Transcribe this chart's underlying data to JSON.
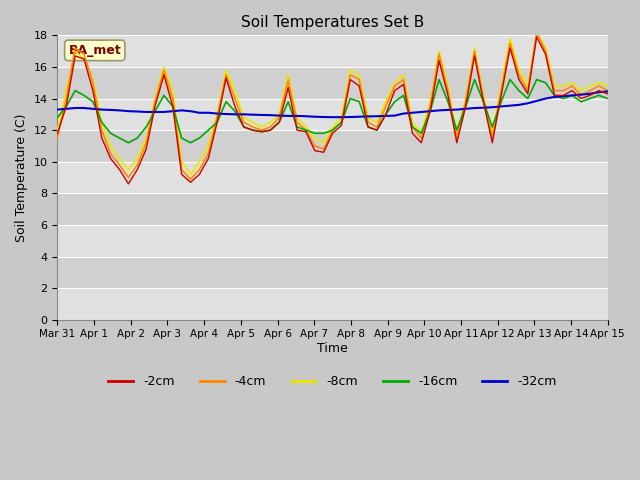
{
  "title": "Soil Temperatures Set B",
  "xlabel": "Time",
  "ylabel": "Soil Temperature (C)",
  "annotation": "BA_met",
  "ylim": [
    0,
    18
  ],
  "yticks": [
    0,
    2,
    4,
    6,
    8,
    10,
    12,
    14,
    16,
    18
  ],
  "xtick_labels": [
    "Mar 31",
    "Apr 1",
    "Apr 2",
    "Apr 3",
    "Apr 4",
    "Apr 5",
    "Apr 6",
    "Apr 7",
    "Apr 8",
    "Apr 9",
    "Apr 10",
    "Apr 11",
    "Apr 12",
    "Apr 13",
    "Apr 14",
    "Apr 15"
  ],
  "colors": {
    "-2cm": "#cc0000",
    "-4cm": "#ff8800",
    "-8cm": "#e8e800",
    "-16cm": "#00aa00",
    "-32cm": "#0000cc"
  },
  "legend_labels": [
    "-2cm",
    "-4cm",
    "-8cm",
    "-16cm",
    "-32cm"
  ],
  "band_colors": [
    "#e0e0e0",
    "#d0d0d0"
  ],
  "fig_facecolor": "#c8c8c8",
  "ax_facecolor": "#d8d8d8",
  "series": {
    "-2cm": [
      11.8,
      13.5,
      16.7,
      16.5,
      14.5,
      11.5,
      10.2,
      9.5,
      8.6,
      9.5,
      10.8,
      13.5,
      15.5,
      13.5,
      9.2,
      8.7,
      9.2,
      10.2,
      12.5,
      15.3,
      13.5,
      12.2,
      12.0,
      11.9,
      12.0,
      12.5,
      14.7,
      12.0,
      11.9,
      10.7,
      10.6,
      11.8,
      12.3,
      15.2,
      14.8,
      12.2,
      12.0,
      13.0,
      14.5,
      14.9,
      11.8,
      11.2,
      13.2,
      16.4,
      14.2,
      11.2,
      13.5,
      16.7,
      13.8,
      11.2,
      14.2,
      17.2,
      15.2,
      14.3,
      17.9,
      16.8,
      14.2,
      14.2,
      14.5,
      14.0,
      14.2,
      14.5,
      14.3
    ],
    "-4cm": [
      11.5,
      14.0,
      17.2,
      16.8,
      15.0,
      12.0,
      10.5,
      9.8,
      9.0,
      9.8,
      11.2,
      13.8,
      15.8,
      14.0,
      9.5,
      8.9,
      9.5,
      10.5,
      12.8,
      15.5,
      14.0,
      12.5,
      12.2,
      12.0,
      12.2,
      12.8,
      15.2,
      12.5,
      12.0,
      11.0,
      10.8,
      12.0,
      12.5,
      15.5,
      15.2,
      12.5,
      12.2,
      13.5,
      14.8,
      15.2,
      12.2,
      11.5,
      13.5,
      16.8,
      14.5,
      11.5,
      13.8,
      17.0,
      14.0,
      11.5,
      14.5,
      17.5,
      15.5,
      14.5,
      18.2,
      17.0,
      14.5,
      14.5,
      14.8,
      14.2,
      14.5,
      14.8,
      14.5
    ],
    "-8cm": [
      12.0,
      14.5,
      17.0,
      16.5,
      15.2,
      12.5,
      11.0,
      10.2,
      9.5,
      10.2,
      11.5,
      14.0,
      16.0,
      14.5,
      10.0,
      9.2,
      10.0,
      11.0,
      13.0,
      15.8,
      14.5,
      12.8,
      12.5,
      12.2,
      12.5,
      13.0,
      15.5,
      12.8,
      12.2,
      11.5,
      11.2,
      12.2,
      12.8,
      15.8,
      15.5,
      12.8,
      12.5,
      13.8,
      15.0,
      15.5,
      12.5,
      11.8,
      13.8,
      17.0,
      14.8,
      11.8,
      14.0,
      17.2,
      14.2,
      11.8,
      14.8,
      17.8,
      15.8,
      14.8,
      18.2,
      17.2,
      14.8,
      14.8,
      15.0,
      14.5,
      14.8,
      15.0,
      14.8
    ],
    "-16cm": [
      12.8,
      13.5,
      14.5,
      14.2,
      13.8,
      12.5,
      11.8,
      11.5,
      11.2,
      11.5,
      12.2,
      13.2,
      14.2,
      13.5,
      11.5,
      11.2,
      11.5,
      12.0,
      12.5,
      13.8,
      13.2,
      12.2,
      12.0,
      11.9,
      12.0,
      12.5,
      13.8,
      12.2,
      12.0,
      11.8,
      11.8,
      12.0,
      12.5,
      14.0,
      13.8,
      12.2,
      12.0,
      13.0,
      13.8,
      14.2,
      12.2,
      11.8,
      13.2,
      15.2,
      13.8,
      12.0,
      13.5,
      15.2,
      13.8,
      12.2,
      13.8,
      15.2,
      14.5,
      14.0,
      15.2,
      15.0,
      14.2,
      14.0,
      14.2,
      13.8,
      14.0,
      14.2,
      14.0
    ],
    "-32cm": [
      13.3,
      13.35,
      13.4,
      13.4,
      13.35,
      13.3,
      13.28,
      13.25,
      13.2,
      13.18,
      13.15,
      13.15,
      13.15,
      13.2,
      13.25,
      13.2,
      13.1,
      13.1,
      13.05,
      13.02,
      13.0,
      13.0,
      12.98,
      12.96,
      12.95,
      12.92,
      12.9,
      12.9,
      12.88,
      12.85,
      12.83,
      12.82,
      12.82,
      12.83,
      12.85,
      12.87,
      12.88,
      12.9,
      12.92,
      13.05,
      13.1,
      13.15,
      13.2,
      13.25,
      13.28,
      13.3,
      13.35,
      13.4,
      13.42,
      13.45,
      13.5,
      13.55,
      13.6,
      13.7,
      13.85,
      14.0,
      14.1,
      14.15,
      14.2,
      14.25,
      14.3,
      14.4,
      14.45
    ]
  }
}
